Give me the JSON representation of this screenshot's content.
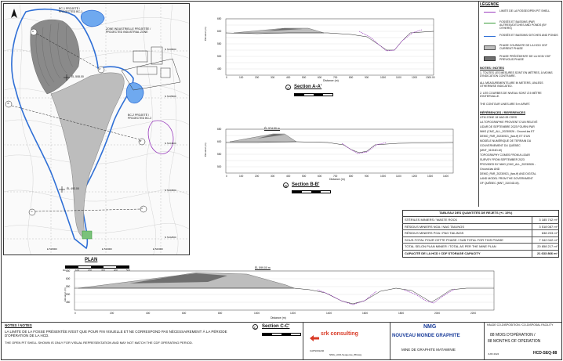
{
  "map": {
    "labels": {
      "bc1": "BC-1 PROJETÉ /\nPROJECTED BC-1",
      "industrial": "ZONE INDUSTRIELLE PROJETÉE /\nPROJECTED INDUSTRIAL ZONE",
      "bc2": "BC-2 PROJETÉ /\nPROJECTED BC-2",
      "el1": "ÉL 508.00",
      "el2": "ÉL 493.00"
    },
    "north_coords": [
      "N 5166800",
      "N 5165800",
      "N 5164800",
      "N 5163800",
      "N 5162800"
    ],
    "east_coords": [
      "E 518000",
      "E 519000",
      "E 520000"
    ],
    "section_markers": [
      "A",
      "A'",
      "B",
      "B'",
      "C",
      "C'"
    ],
    "plan_label": "PLAN",
    "scale_ticks": [
      "0m",
      "100",
      "200",
      "300",
      "400",
      "500"
    ]
  },
  "sections": {
    "a": {
      "title": "Section A-A'",
      "number": "A",
      "ref": "HCD-SEQ-88",
      "ylabel": "Élévation (m)",
      "xlabel": "Distance (m)",
      "yticks": [
        "650",
        "625",
        "600",
        "575",
        "550",
        "525",
        "500",
        "475",
        "450",
        "425",
        "400"
      ],
      "xticks": [
        "0",
        "100",
        "200",
        "300",
        "400",
        "500",
        "600",
        "700",
        "800",
        "900",
        "1000",
        "1100",
        "1200",
        "1300.00"
      ]
    },
    "b": {
      "title": "Section B-B'",
      "number": "B",
      "ref": "HCD-SEQ-88",
      "elevation_label": "ÉL 574.50 m",
      "ylabel": "Élévation (m)",
      "xlabel": "Distance (m)",
      "yticks": [
        "650",
        "625",
        "600",
        "575",
        "550",
        "525",
        "500",
        "475",
        "450"
      ],
      "xticks": [
        "0",
        "100",
        "200",
        "300",
        "400",
        "500",
        "600",
        "700",
        "800",
        "900",
        "1000",
        "1100",
        "1200",
        "1300",
        "1400"
      ]
    },
    "c": {
      "title": "Section C-C'",
      "number": "C",
      "ref": "HCD-SEQ-88",
      "elevation_label": "ÉL 599.00 m",
      "ylabel": "Élévation (m)",
      "xlabel": "Distance (m)",
      "yticks": [
        "650",
        "600",
        "550",
        "500",
        "450",
        "400"
      ],
      "xticks": [
        "0",
        "100",
        "200",
        "300",
        "400",
        "500",
        "600",
        "700",
        "800",
        "900",
        "1000",
        "1100",
        "1200",
        "1300",
        "1400",
        "1500",
        "1600",
        "1700",
        "1800",
        "1900",
        "2000",
        "2100",
        "2200",
        "2300"
      ]
    }
  },
  "legend": {
    "title": "LÉGENDE",
    "items": [
      {
        "label": "LIMITE DE LA FOSSE/OPEN PIT SHELL",
        "color": "#9b3fbf"
      },
      {
        "label": "FOSSÉS ET BASSINS (PAR AUTRES)/DITCHES AND PONDS (BY OTHERS)",
        "color": "#3a9c3a"
      },
      {
        "label": "FOSSÉS ET BASSINS/ DITCHES AND PONDS",
        "color": "#2f6fd6"
      },
      {
        "label": "PHASE COURANTE DE LA HCD/ CDF CURRENT PHASE",
        "color": "#bdbdbd"
      },
      {
        "label": "PHASE PRÉCÉDENTE DE LA HCD/ CDF PREVIOUS PHASE",
        "color": "#6f6f6f"
      }
    ]
  },
  "notes": {
    "title": "NOTES / NOTES",
    "items": [
      "1.  TOUTES LES MESURES SONT EN MÈTRES, À MOINS D'INDICATION CONTRAIRE.",
      "     ALL MEASUREMENTS ARE IN METERS, UNLESS OTHERWISE INDICATED.",
      "2.  LES COURBES DE NIVEAU SONT À 5 MÈTRE D'INTERVALLE.",
      "     THE CONTOUR LINES ARE 5 m APART."
    ]
  },
  "references": {
    "title": "RÉFÉRENCES / REFERENCES",
    "lines": [
      "UTM ZONE 18 NAD 83 CSRS",
      "LA TOPOGRAPHIE PROVIENT D'UN RELEVÉ",
      "LIDAR DE SEPTEMBRE 2023 FOURNI PAR",
      "NMG (CMC_ALL_20230526 - Ground.las ET",
      "DEMO_PAR_20230921_(lws-ff) ET D'UN",
      "MODÈLE NUMÉRIQUE DE TERRAIN DU",
      "GOUVERNEMENT DU QUÉBEC",
      "(MNT_31IO4D-M)",
      "TOPOGRAPHY COMES FROM A LIDAR",
      "SURVEY FROM SEPTEMBER 2023",
      "PROVIDED BY NMG (CMC_ALL_20230526 -",
      "Ground.las AND",
      "DEMO_PAR_20230921_(lws-ff) AND DIGITAL",
      "LAND MODEL FROM THE GOVERNMENT",
      "OF QUÉBEC (MNT_31IO4D-M)."
    ]
  },
  "quantities": {
    "title": "TABLEAU DES QUANTITÉS DE REJETS (+/- 15%)",
    "rows": [
      {
        "label": "STÉRILES MINIERS / WASTE ROCK",
        "value": "3 185 742 m³"
      },
      {
        "label": "RÉSIDUS MINIERS NGA / NAG TAILINGS",
        "value": "3 518 087 m³"
      },
      {
        "label": "RÉSIDUS MINIERS PGA / PAG TAILINGS",
        "value": "638 203 m³"
      },
      {
        "label": "SOUS-TOTAL POUR CETTE PHASE / SUB TOTAL FOR THIS PHASE",
        "value": "7 342 042 m³"
      },
      {
        "label": "TOTAL SELON PLAN MINIER / TOTAL AS PER THE MINE PLAN",
        "value": "20 858 217 m³"
      },
      {
        "label": "CAPACITÉ DE LA HCD / CDF STORAGE CAPACITY",
        "value": "21 633 866 m³"
      }
    ]
  },
  "bottom_notes": {
    "title": "NOTES / NOTES",
    "fr": "LA LIMITE DE LA FOSSE PRÉSENTÉE N'EST QUE POUR FIN VISUELLE ET NE CORRESPOND PAS NÉCESSAIREMENT À LA PÉRIODE D'OPÉRATION DE LA HCD.",
    "en": "THE OPEN PIT SHELL SHOWN IS ONLY FOR VISUAL REPRESENTATION AND MAY NOT MATCH THE CDF OPERATING PERIOD."
  },
  "title_block": {
    "consultant": "srk consulting",
    "client_logo_top": "NMG",
    "client": "NOUVEAU MONDE GRAPHITE",
    "project": "MINE DE GRAPHITE MATAWINIE",
    "facility": "HALDE CO-DISPOSITION / CO-DISPOSAL FACILITY",
    "drawing_title_fr": "88 MOIS D'OPÉRATION /",
    "drawing_title_en": "88 MONTHS OF OPERATION",
    "project_no": "CAPS001240",
    "date": "JUIN 2024",
    "drawing_no": "HCD-SEQ-88",
    "file": "NMG_HCD-Sequence_88.dwg"
  },
  "colors": {
    "pit": "#9b3fbf",
    "ditch_others": "#3a9c3a",
    "ditch": "#2f6fd6",
    "current_phase": "#bdbdbd",
    "previous_phase": "#6f6f6f",
    "srk_red": "#d93a26",
    "nmg_blue": "#1a3d9a"
  }
}
